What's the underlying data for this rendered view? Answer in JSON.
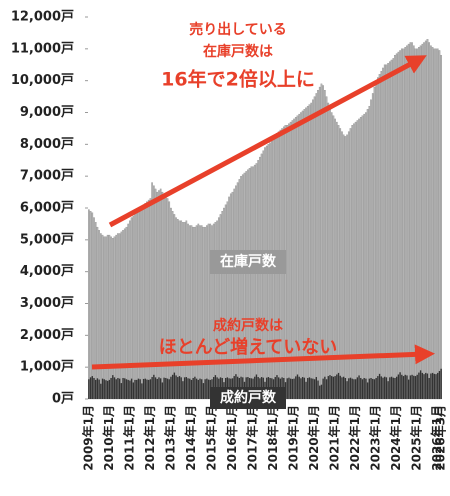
{
  "chart_data": {
    "type": "bar",
    "annotations": [
      "売り出している",
      "在庫戸数は",
      "16年で2倍以上に",
      "成約戸数は",
      "ほとんど増えていない"
    ],
    "categories": [
      "2009年1月",
      null,
      null,
      null,
      null,
      null,
      null,
      null,
      null,
      null,
      null,
      null,
      "2010年1月",
      null,
      null,
      null,
      null,
      null,
      null,
      null,
      null,
      null,
      null,
      null,
      "2011年1月",
      null,
      null,
      null,
      null,
      null,
      null,
      null,
      null,
      null,
      null,
      null,
      "2012年1月",
      null,
      null,
      null,
      null,
      null,
      null,
      null,
      null,
      null,
      null,
      null,
      "2013年1月",
      null,
      null,
      null,
      null,
      null,
      null,
      null,
      null,
      null,
      null,
      null,
      "2014年1月",
      null,
      null,
      null,
      null,
      null,
      null,
      null,
      null,
      null,
      null,
      null,
      "2015年1月",
      null,
      null,
      null,
      null,
      null,
      null,
      null,
      null,
      null,
      null,
      null,
      "2016年1月",
      null,
      null,
      null,
      null,
      null,
      null,
      null,
      null,
      null,
      null,
      null,
      "2017年1月",
      null,
      null,
      null,
      null,
      null,
      null,
      null,
      null,
      null,
      null,
      null,
      "2018年1月",
      null,
      null,
      null,
      null,
      null,
      null,
      null,
      null,
      null,
      null,
      null,
      "2019年1月",
      null,
      null,
      null,
      null,
      null,
      null,
      null,
      null,
      null,
      null,
      null,
      "2020年1月",
      null,
      null,
      null,
      null,
      null,
      null,
      null,
      null,
      null,
      null,
      null,
      "2021年1月",
      null,
      null,
      null,
      null,
      null,
      null,
      null,
      null,
      null,
      null,
      null,
      "2022年1月",
      null,
      null,
      null,
      null,
      null,
      null,
      null,
      null,
      null,
      null,
      null,
      "2023年1月",
      null,
      null,
      null,
      null,
      null,
      null,
      null,
      null,
      null,
      null,
      null,
      "2024年1月",
      null,
      null,
      null,
      null,
      null,
      null,
      null,
      null,
      null,
      null,
      null,
      "2025年1月",
      null,
      null,
      null,
      null,
      null,
      null,
      null,
      null,
      null,
      null,
      null,
      "2026年1月",
      null,
      "2026年3月"
    ],
    "series": [
      {
        "name": "在庫戸数",
        "color": "#b3b3b3",
        "values": [
          5950,
          5900,
          5850,
          5700,
          5550,
          5400,
          5300,
          5200,
          5150,
          5100,
          5100,
          5150,
          5150,
          5100,
          5050,
          5100,
          5150,
          5200,
          5200,
          5250,
          5300,
          5350,
          5400,
          5500,
          5600,
          5700,
          5750,
          5800,
          5900,
          5950,
          6000,
          6050,
          6100,
          6150,
          6200,
          6250,
          6300,
          6800,
          6700,
          6600,
          6500,
          6550,
          6600,
          6500,
          6400,
          6350,
          6300,
          6200,
          6000,
          5900,
          5800,
          5700,
          5650,
          5600,
          5600,
          5550,
          5550,
          5600,
          5500,
          5450,
          5450,
          5400,
          5400,
          5450,
          5500,
          5450,
          5450,
          5400,
          5400,
          5450,
          5500,
          5500,
          5450,
          5500,
          5550,
          5600,
          5700,
          5800,
          5900,
          6000,
          6100,
          6200,
          6350,
          6450,
          6500,
          6600,
          6700,
          6800,
          6900,
          7000,
          7050,
          7100,
          7150,
          7200,
          7250,
          7300,
          7300,
          7350,
          7400,
          7500,
          7600,
          7700,
          7800,
          7900,
          7950,
          8000,
          8050,
          8100,
          8200,
          8300,
          8350,
          8400,
          8450,
          8500,
          8550,
          8600,
          8600,
          8650,
          8700,
          8750,
          8800,
          8850,
          8900,
          8950,
          9000,
          9050,
          9100,
          9150,
          9200,
          9250,
          9300,
          9400,
          9500,
          9600,
          9700,
          9800,
          9900,
          9850,
          9700,
          9500,
          9300,
          9100,
          9000,
          8900,
          8800,
          8700,
          8600,
          8500,
          8400,
          8300,
          8250,
          8300,
          8400,
          8500,
          8600,
          8650,
          8700,
          8750,
          8800,
          8850,
          8900,
          8950,
          9000,
          9100,
          9200,
          9400,
          9600,
          9800,
          10000,
          10100,
          10200,
          10300,
          10400,
          10500,
          10500,
          10550,
          10600,
          10650,
          10700,
          10800,
          10850,
          10900,
          10950,
          11000,
          11000,
          11050,
          11100,
          11150,
          11200,
          11200,
          11100,
          11000,
          11000,
          11050,
          11100,
          11150,
          11200,
          11250,
          11300,
          11200,
          11100,
          11050,
          11000,
          11000,
          11000,
          10950,
          10800
        ]
      },
      {
        "name": "成約戸数",
        "color": "#333333",
        "values": [
          620,
          680,
          720,
          660,
          600,
          650,
          610,
          480,
          640,
          620,
          590,
          570,
          600,
          660,
          750,
          680,
          620,
          660,
          640,
          500,
          660,
          650,
          620,
          600,
          580,
          640,
          520,
          600,
          600,
          640,
          620,
          490,
          630,
          640,
          610,
          600,
          620,
          690,
          760,
          680,
          630,
          680,
          650,
          520,
          670,
          660,
          640,
          620,
          700,
          760,
          830,
          740,
          690,
          720,
          680,
          560,
          680,
          690,
          650,
          640,
          600,
          660,
          700,
          640,
          600,
          640,
          620,
          500,
          620,
          640,
          610,
          600,
          620,
          690,
          750,
          680,
          640,
          680,
          660,
          530,
          660,
          680,
          650,
          640,
          650,
          720,
          780,
          700,
          660,
          700,
          680,
          540,
          680,
          690,
          660,
          650,
          640,
          700,
          770,
          690,
          650,
          690,
          670,
          540,
          670,
          690,
          660,
          650,
          620,
          690,
          750,
          680,
          640,
          680,
          660,
          530,
          650,
          670,
          640,
          630,
          640,
          710,
          770,
          700,
          650,
          690,
          670,
          540,
          660,
          680,
          650,
          640,
          620,
          690,
          580,
          420,
          450,
          640,
          700,
          620,
          720,
          750,
          720,
          700,
          720,
          770,
          820,
          730,
          680,
          700,
          660,
          560,
          650,
          670,
          640,
          620,
          620,
          680,
          740,
          660,
          620,
          660,
          640,
          520,
          640,
          660,
          630,
          620,
          660,
          720,
          790,
          710,
          670,
          700,
          680,
          560,
          680,
          700,
          670,
          660,
          700,
          770,
          840,
          760,
          720,
          760,
          740,
          610,
          740,
          760,
          730,
          720,
          760,
          830,
          900,
          820,
          780,
          820,
          800,
          660,
          800,
          820,
          790,
          780,
          820,
          880,
          950
        ]
      }
    ],
    "ylim": [
      0,
      12000
    ],
    "yticks": [
      {
        "value": 0,
        "label": "0戸"
      },
      {
        "value": 1000,
        "label": "1,000戸"
      },
      {
        "value": 2000,
        "label": "2,000戸"
      },
      {
        "value": 3000,
        "label": "3,000戸"
      },
      {
        "value": 4000,
        "label": "4,000戸"
      },
      {
        "value": 5000,
        "label": "5,000戸"
      },
      {
        "value": 6000,
        "label": "6,000戸"
      },
      {
        "value": 7000,
        "label": "7,000戸"
      },
      {
        "value": 8000,
        "label": "8,000戸"
      },
      {
        "value": 9000,
        "label": "9,000戸"
      },
      {
        "value": 10000,
        "label": "10,000戸"
      },
      {
        "value": 11000,
        "label": "11,000戸"
      },
      {
        "value": 12000,
        "label": "12,000戸"
      }
    ]
  }
}
